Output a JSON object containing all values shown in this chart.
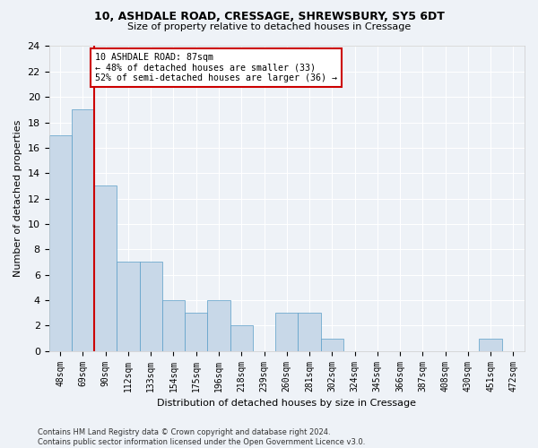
{
  "title_line1": "10, ASHDALE ROAD, CRESSAGE, SHREWSBURY, SY5 6DT",
  "title_line2": "Size of property relative to detached houses in Cressage",
  "xlabel": "Distribution of detached houses by size in Cressage",
  "ylabel": "Number of detached properties",
  "bar_color": "#c8d8e8",
  "bar_edge_color": "#5a9ec8",
  "categories": [
    "48sqm",
    "69sqm",
    "90sqm",
    "112sqm",
    "133sqm",
    "154sqm",
    "175sqm",
    "196sqm",
    "218sqm",
    "239sqm",
    "260sqm",
    "281sqm",
    "302sqm",
    "324sqm",
    "345sqm",
    "366sqm",
    "387sqm",
    "408sqm",
    "430sqm",
    "451sqm",
    "472sqm"
  ],
  "values": [
    17,
    19,
    13,
    7,
    7,
    4,
    3,
    4,
    2,
    0,
    3,
    3,
    1,
    0,
    0,
    0,
    0,
    0,
    0,
    1,
    0
  ],
  "ylim": [
    0,
    24
  ],
  "yticks": [
    0,
    2,
    4,
    6,
    8,
    10,
    12,
    14,
    16,
    18,
    20,
    22,
    24
  ],
  "vline_x": 1.5,
  "annotation_text": "10 ASHDALE ROAD: 87sqm\n← 48% of detached houses are smaller (33)\n52% of semi-detached houses are larger (36) →",
  "annotation_box_color": "#ffffff",
  "annotation_box_edge_color": "#cc0000",
  "vline_color": "#cc0000",
  "footer_text": "Contains HM Land Registry data © Crown copyright and database right 2024.\nContains public sector information licensed under the Open Government Licence v3.0.",
  "background_color": "#eef2f7",
  "grid_color": "#ffffff"
}
